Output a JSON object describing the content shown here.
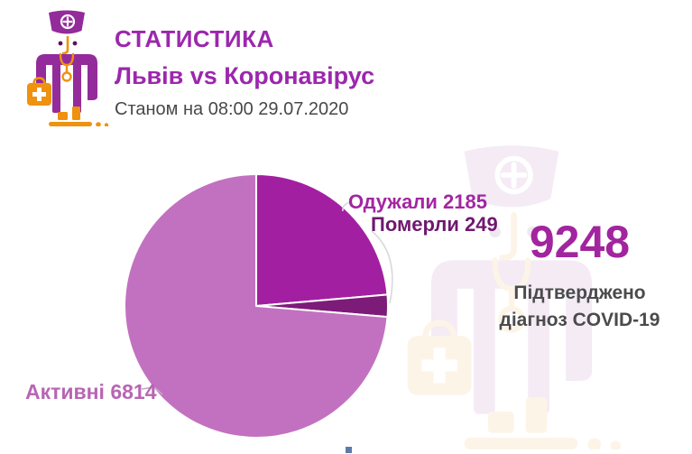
{
  "header": {
    "title": "СТАТИСТИКА",
    "subtitle": "Львів vs Коронавірус",
    "date_line": "Станом на 08:00 29.07.2020"
  },
  "stats": {
    "confirmed_value": "9248",
    "confirmed_caption_lines": [
      "Підтверджено",
      "діагноз COVID-19"
    ]
  },
  "chart_data": {
    "type": "pie",
    "title": "Львів vs Коронавірус",
    "total": 9248,
    "start_angle_deg": 0,
    "direction": "clockwise",
    "slices": [
      {
        "key": "recovered",
        "label": "Одужали",
        "value": 2185,
        "color": "#a31fa1",
        "label_color": "#a226a2"
      },
      {
        "key": "died",
        "label": "Померли",
        "value": 249,
        "color": "#7d1b79",
        "label_color": "#6e196f"
      },
      {
        "key": "active",
        "label": "Активні",
        "value": 6814,
        "color": "#c271c0",
        "label_color": "#b765b3"
      }
    ],
    "legend_position": "callout-labels",
    "grid": false
  },
  "icons": {
    "header_icon": "doctor-mascot-icon",
    "background_icon": "doctor-mascot-watermark-icon"
  },
  "colors": {
    "accent_purple": "#9c27ad",
    "magenta": "#a31fa1",
    "dark_purple": "#7d1b79",
    "light_orchid": "#c271c0",
    "text_gray": "#4b4b4d",
    "icon_orange": "#ee9210",
    "icon_purple": "#932b9b"
  }
}
